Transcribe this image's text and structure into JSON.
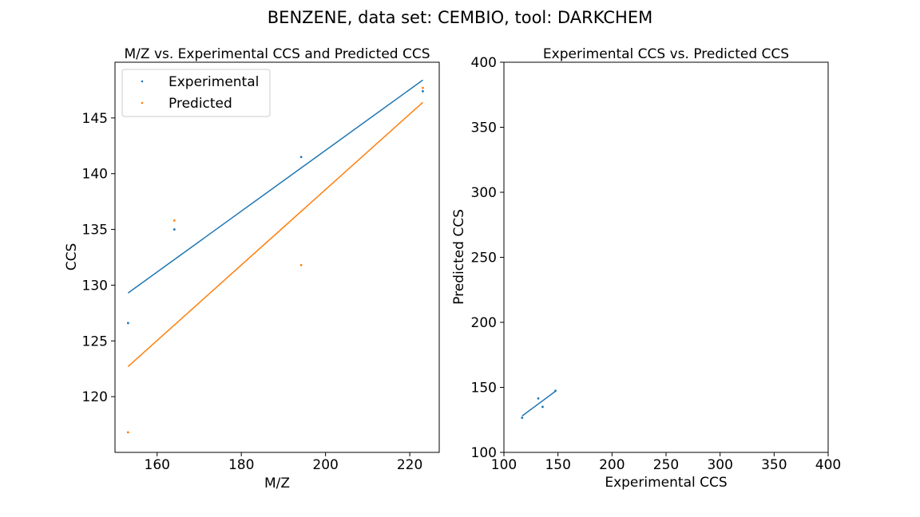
{
  "figure": {
    "title": "BENZENE, data set: CEMBIO, tool: DARKCHEM"
  },
  "colors": {
    "blue": "#1f77b4",
    "orange": "#ff7f0e"
  },
  "chart_data": [
    {
      "type": "scatter",
      "title": "M/Z vs. Experimental CCS and Predicted CCS",
      "xlabel": "M/Z",
      "ylabel": "CCS",
      "xlim": [
        150,
        227
      ],
      "ylim": [
        115,
        150
      ],
      "xticks": [
        160,
        180,
        200,
        220
      ],
      "yticks": [
        120,
        125,
        130,
        135,
        140,
        145
      ],
      "legend": {
        "placement": "top-left"
      },
      "series": [
        {
          "name": "Experimental",
          "color": "#1f77b4",
          "points": [
            [
              153.1,
              126.6
            ],
            [
              164.1,
              135.0
            ],
            [
              194.2,
              141.5
            ],
            [
              223.1,
              147.4
            ]
          ],
          "fit": [
            [
              153.1,
              129.3
            ],
            [
              223.1,
              148.4
            ]
          ]
        },
        {
          "name": "Predicted",
          "color": "#ff7f0e",
          "points": [
            [
              153.1,
              116.8
            ],
            [
              164.1,
              135.8
            ],
            [
              194.2,
              131.8
            ],
            [
              223.1,
              147.7
            ]
          ],
          "fit": [
            [
              153.1,
              122.7
            ],
            [
              223.1,
              146.4
            ]
          ]
        }
      ]
    },
    {
      "type": "scatter",
      "title": "Experimental CCS vs. Predicted CCS",
      "xlabel": "Experimental CCS",
      "ylabel": "Predicted CCS",
      "xlim": [
        100,
        400
      ],
      "ylim": [
        100,
        400
      ],
      "xticks": [
        100,
        150,
        200,
        250,
        300,
        350,
        400
      ],
      "yticks": [
        100,
        150,
        200,
        250,
        300,
        350,
        400
      ],
      "series": [
        {
          "color": "#1f77b4",
          "points": [
            [
              116.8,
              126.6
            ],
            [
              131.8,
              141.5
            ],
            [
              135.8,
              135.0
            ],
            [
              147.7,
              147.4
            ]
          ],
          "fit": [
            [
              116.8,
              128.0
            ],
            [
              147.7,
              147.0
            ]
          ]
        }
      ]
    }
  ]
}
